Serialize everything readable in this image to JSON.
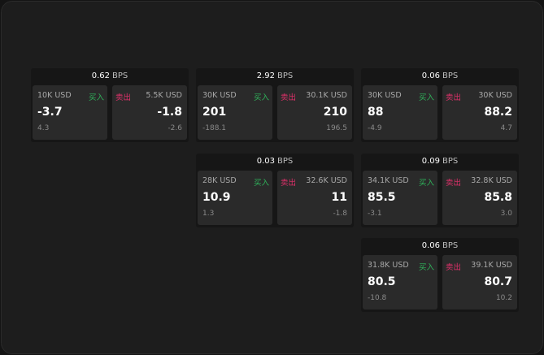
{
  "buy_label": "买入",
  "sell_label": "卖出",
  "bps_unit": "BPS",
  "colors": {
    "buy": "#2fb35a",
    "sell": "#e0306a"
  },
  "panels": [
    {
      "spread": "0.62",
      "bid": {
        "qty": "10K USD",
        "price": "-3.7",
        "change": "4.3"
      },
      "ask": {
        "qty": "5.5K USD",
        "price": "-1.8",
        "change": "-2.6"
      }
    },
    {
      "spread": "2.92",
      "bid": {
        "qty": "30K USD",
        "price": "201",
        "change": "-188.1"
      },
      "ask": {
        "qty": "30.1K USD",
        "price": "210",
        "change": "196.5"
      }
    },
    {
      "spread": "0.06",
      "bid": {
        "qty": "30K USD",
        "price": "88",
        "change": "-4.9"
      },
      "ask": {
        "qty": "30K USD",
        "price": "88.2",
        "change": "4.7"
      }
    },
    {
      "spread": "0.03",
      "bid": {
        "qty": "28K USD",
        "price": "10.9",
        "change": "1.3"
      },
      "ask": {
        "qty": "32.6K USD",
        "price": "11",
        "change": "-1.8"
      }
    },
    {
      "spread": "0.09",
      "bid": {
        "qty": "34.1K USD",
        "price": "85.5",
        "change": "-3.1"
      },
      "ask": {
        "qty": "32.8K USD",
        "price": "85.8",
        "change": "3.0"
      }
    },
    {
      "spread": "0.06",
      "bid": {
        "qty": "31.8K USD",
        "price": "80.5",
        "change": "-10.8"
      },
      "ask": {
        "qty": "39.1K USD",
        "price": "80.7",
        "change": "10.2"
      }
    }
  ]
}
